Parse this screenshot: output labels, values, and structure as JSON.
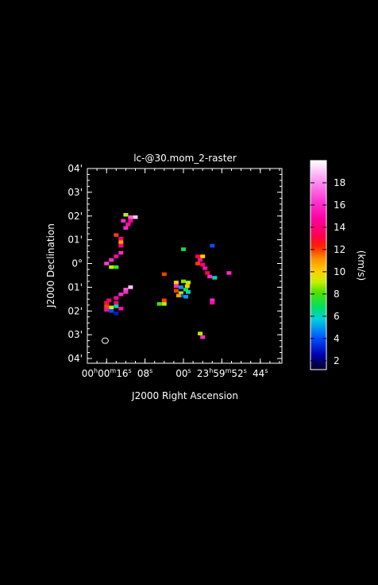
{
  "chart_data": {
    "type": "heatmap",
    "title": "lc-@30.mom_2-raster",
    "xlabel": "J2000 Right Ascension",
    "ylabel": "J2000 Declination",
    "colorbar_label": "(km/s)",
    "colorbar_range": [
      1.2,
      20
    ],
    "colorbar_ticks": [
      2,
      4,
      6,
      8,
      10,
      12,
      14,
      16,
      18
    ],
    "x_ticks": [
      {
        "ra_s": 16,
        "h": "00",
        "m": "00",
        "s": "16"
      },
      {
        "ra_s": 8,
        "s": "08"
      },
      {
        "ra_s": 0,
        "s": "00"
      },
      {
        "ra_s": -8,
        "h": "23",
        "m": "59",
        "s": "52"
      },
      {
        "ra_s": -16,
        "s": "44"
      }
    ],
    "xlim_ra_s": [
      20,
      -20.5
    ],
    "y_ticks": [
      "04'",
      "03'",
      "02'",
      "01'",
      "0°",
      "01'",
      "02'",
      "03'",
      "04'"
    ],
    "y_tick_values_arcmin": [
      4,
      3,
      2,
      1,
      0,
      -1,
      -2,
      -3,
      -4
    ],
    "ylim_arcmin": [
      -4.2,
      4.0
    ],
    "beam": {
      "ra_s": 16.3,
      "dec_arcmin": -3.25
    },
    "pixels": [
      [
        12.0,
        2.05,
        9
      ],
      [
        11.0,
        1.95,
        17
      ],
      [
        10.0,
        1.95,
        19
      ],
      [
        11.0,
        1.8,
        14.5
      ],
      [
        12.5,
        1.8,
        16
      ],
      [
        11.5,
        1.65,
        15
      ],
      [
        12.0,
        1.5,
        16
      ],
      [
        14.0,
        1.2,
        12
      ],
      [
        13.0,
        1.05,
        14
      ],
      [
        13.0,
        0.9,
        11
      ],
      [
        13.0,
        0.75,
        14
      ],
      [
        13.0,
        0.45,
        16
      ],
      [
        14.0,
        0.3,
        15
      ],
      [
        15.0,
        0.15,
        16
      ],
      [
        16.0,
        0.0,
        16.5
      ],
      [
        15.0,
        -0.15,
        9
      ],
      [
        14.0,
        -0.15,
        8
      ],
      [
        11.0,
        -1.0,
        19
      ],
      [
        12.0,
        -1.1,
        17
      ],
      [
        12.0,
        -1.2,
        16
      ],
      [
        13.0,
        -1.3,
        16
      ],
      [
        14.0,
        -1.45,
        15
      ],
      [
        15.5,
        -1.55,
        14
      ],
      [
        16.0,
        -1.65,
        13
      ],
      [
        14.0,
        -1.65,
        14
      ],
      [
        16.0,
        -1.8,
        12
      ],
      [
        15.0,
        -1.85,
        9
      ],
      [
        14.0,
        -1.8,
        6
      ],
      [
        16.0,
        -1.95,
        15
      ],
      [
        15.0,
        -2.0,
        4
      ],
      [
        14.0,
        -2.1,
        3
      ],
      [
        13.0,
        -1.9,
        15
      ],
      [
        4.0,
        -0.45,
        12
      ],
      [
        4.0,
        -1.55,
        12
      ],
      [
        4.0,
        -1.7,
        9
      ],
      [
        5.0,
        -1.7,
        8
      ],
      [
        0.0,
        0.6,
        7
      ],
      [
        1.5,
        -0.8,
        10
      ],
      [
        0.0,
        -0.75,
        8.5
      ],
      [
        -1.0,
        -0.8,
        9
      ],
      [
        -0.8,
        -0.95,
        10
      ],
      [
        1.5,
        -0.95,
        16
      ],
      [
        0.5,
        -1.0,
        5
      ],
      [
        -0.5,
        -1.1,
        7
      ],
      [
        1.5,
        -1.15,
        12
      ],
      [
        0.5,
        -1.25,
        9
      ],
      [
        -1.0,
        -1.2,
        6
      ],
      [
        0.5,
        -1.35,
        4
      ],
      [
        -0.5,
        -1.4,
        5
      ],
      [
        1.0,
        -1.35,
        11
      ],
      [
        -3.0,
        0.3,
        13
      ],
      [
        -4.0,
        0.3,
        10
      ],
      [
        -3.5,
        0.15,
        15
      ],
      [
        -3.0,
        0.0,
        12
      ],
      [
        -4.0,
        -0.05,
        14
      ],
      [
        -4.5,
        -0.2,
        15
      ],
      [
        -5.0,
        -0.4,
        13
      ],
      [
        -5.5,
        -0.55,
        16
      ],
      [
        -6.5,
        -0.6,
        6
      ],
      [
        -6.0,
        0.75,
        4
      ],
      [
        -9.5,
        -0.4,
        16
      ],
      [
        -6.0,
        -1.55,
        16
      ],
      [
        -6.0,
        -1.65,
        15
      ],
      [
        -3.5,
        -2.95,
        9
      ],
      [
        -4.0,
        -3.1,
        16
      ]
    ]
  }
}
